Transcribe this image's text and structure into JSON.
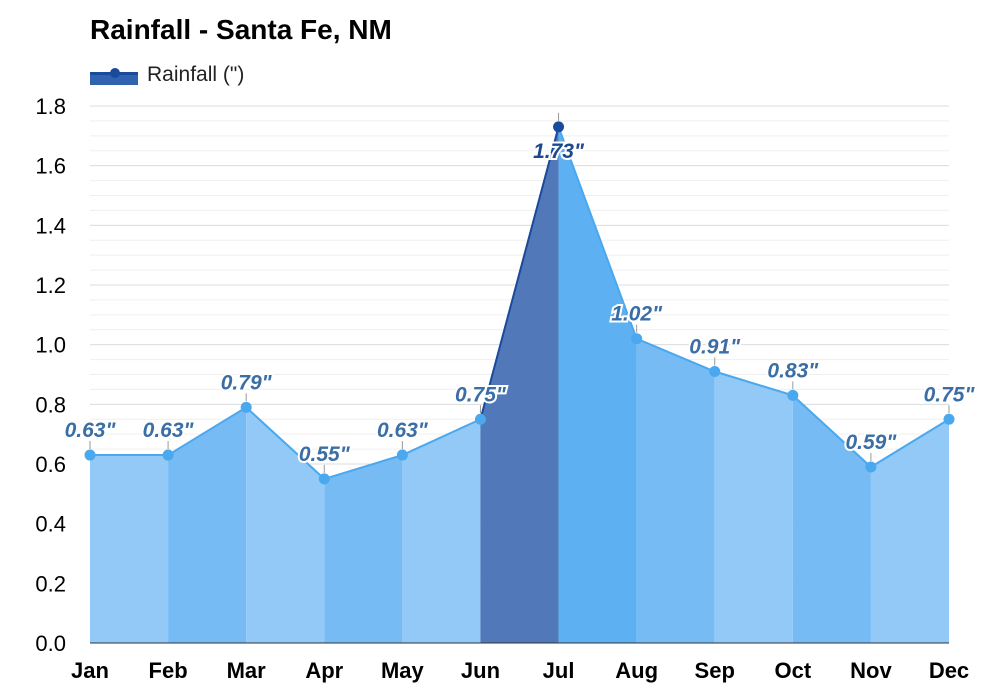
{
  "chart_data": {
    "type": "area",
    "title": "Rainfall - Santa Fe, NM",
    "categories": [
      "Jan",
      "Feb",
      "Mar",
      "Apr",
      "May",
      "Jun",
      "Jul",
      "Aug",
      "Sep",
      "Oct",
      "Nov",
      "Dec"
    ],
    "series": [
      {
        "name": "Rainfall (\")",
        "values": [
          0.63,
          0.63,
          0.79,
          0.55,
          0.63,
          0.75,
          1.73,
          1.02,
          0.91,
          0.83,
          0.59,
          0.75
        ]
      }
    ],
    "data_labels": [
      "0.63\"",
      "0.63\"",
      "0.79\"",
      "0.55\"",
      "0.63\"",
      "0.75\"",
      "1.73\"",
      "1.02\"",
      "0.91\"",
      "0.83\"",
      "0.59\"",
      "0.75\""
    ],
    "highlighted_month": "Jul",
    "ylim": [
      0,
      1.8
    ],
    "yticks": [
      "0.0",
      "0.2",
      "0.4",
      "0.6",
      "0.8",
      "1.0",
      "1.2",
      "1.4",
      "1.6",
      "1.8"
    ],
    "xlabel": "",
    "ylabel": "",
    "grid": true,
    "legend": "top-left",
    "colors": {
      "area_light": "#92c9f7",
      "area_mid": "#76bbf4",
      "area_strong": "#5db0f2",
      "highlight": "#5178b8",
      "line": "#4aa8ee",
      "highlight_line": "#1a4a9c",
      "label_text": "#3a6ea5",
      "highlight_label_text": "#1d4a8c",
      "grid": "#e6e6e6"
    }
  }
}
